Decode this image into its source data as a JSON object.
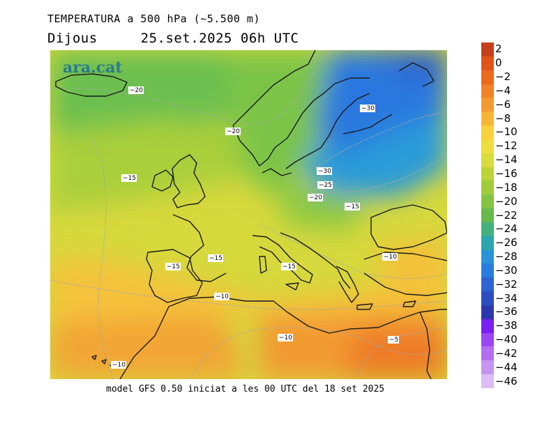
{
  "header": {
    "title": "TEMPERATURA a 500 hPa (~5.500 m)",
    "day": "Dijous",
    "datetime": "25.set.2025 06h UTC"
  },
  "brand": "ara.cat",
  "footer": "model GFS 0.50 iniciat a les 00 UTC del 18 set 2025",
  "map": {
    "contour_labels": [
      {
        "text": "-20"
      },
      {
        "text": "-20"
      },
      {
        "text": "-30"
      },
      {
        "text": "-30"
      },
      {
        "text": "-25"
      },
      {
        "text": "-20"
      },
      {
        "text": "-15"
      },
      {
        "text": "-15"
      },
      {
        "text": "-15"
      },
      {
        "text": "-15"
      },
      {
        "text": "-15"
      },
      {
        "text": "-10"
      },
      {
        "text": "-10"
      },
      {
        "text": "-10"
      },
      {
        "text": "-10"
      },
      {
        "text": "-5"
      }
    ]
  },
  "legend": {
    "values": [
      "2",
      "0",
      "−2",
      "−4",
      "−6",
      "−8",
      "−10",
      "−12",
      "−14",
      "−16",
      "−18",
      "−20",
      "−22",
      "−24",
      "−26",
      "−28",
      "−30",
      "−32",
      "−34",
      "−36",
      "−38",
      "−40",
      "−42",
      "−44",
      "−46"
    ],
    "colors": [
      "#c5401a",
      "#e0541a",
      "#ea6a1e",
      "#ef8226",
      "#f39a30",
      "#f7b537",
      "#f9cf3c",
      "#efdc3e",
      "#d9dc3a",
      "#bcd438",
      "#a0cc3c",
      "#84c443",
      "#66ba4b",
      "#44b07c",
      "#2aa6ac",
      "#2a93d6",
      "#2b7ce0",
      "#2c64d4",
      "#2c4ec0",
      "#2b38ac",
      "#7a1ef2",
      "#9b46f2",
      "#b36ef2",
      "#c894f2",
      "#dcbcf4"
    ]
  }
}
